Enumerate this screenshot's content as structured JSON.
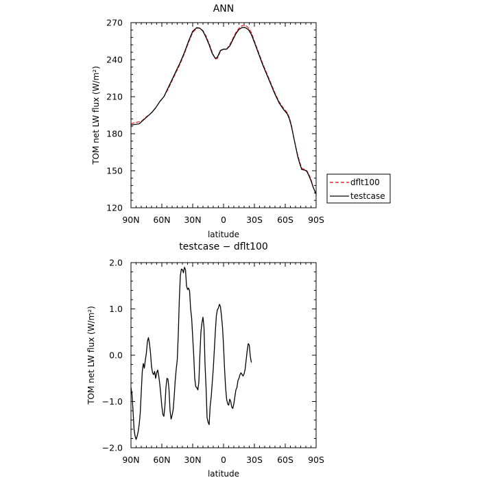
{
  "chart_data": [
    {
      "type": "line",
      "title": "ANN",
      "xlabel": "latitude",
      "ylabel": "TOM net LW flux (W/m²)",
      "xlim": [
        -90,
        90
      ],
      "ylim": [
        120,
        270
      ],
      "xticks": [
        -90,
        -60,
        -30,
        0,
        30,
        60,
        90
      ],
      "xtick_labels": [
        "90N",
        "60N",
        "30N",
        "0",
        "30S",
        "60S",
        "90S"
      ],
      "yticks": [
        120,
        150,
        180,
        210,
        240,
        270
      ],
      "ytick_labels": [
        "120",
        "150",
        "180",
        "210",
        "240",
        "270"
      ],
      "legend": "outside-right",
      "series": [
        {
          "name": "dflt100",
          "color": "#e8262b",
          "dash": "dashed",
          "points": [
            [
              -90,
              188
            ],
            [
              -86,
              189
            ],
            [
              -80,
              190
            ],
            [
              -76,
              193
            ],
            [
              -70,
              197
            ],
            [
              -66,
              201
            ],
            [
              -62,
              206
            ],
            [
              -58,
              210
            ],
            [
              -54,
              216
            ],
            [
              -50,
              223
            ],
            [
              -46,
              230
            ],
            [
              -42,
              237
            ],
            [
              -38,
              245
            ],
            [
              -34,
              254
            ],
            [
              -30,
              262
            ],
            [
              -26,
              265.5
            ],
            [
              -23,
              265.5
            ],
            [
              -20,
              263.5
            ],
            [
              -17,
              259
            ],
            [
              -14,
              253
            ],
            [
              -11,
              246
            ],
            [
              -8,
              240.5
            ],
            [
              -6,
              241
            ],
            [
              -3,
              247
            ],
            [
              0,
              248.5
            ],
            [
              3,
              248.5
            ],
            [
              6,
              252
            ],
            [
              9,
              257
            ],
            [
              12,
              262
            ],
            [
              15,
              265.5
            ],
            [
              18,
              267.5
            ],
            [
              21,
              268
            ],
            [
              24,
              266
            ],
            [
              27,
              262
            ],
            [
              30,
              255
            ],
            [
              34,
              246
            ],
            [
              38,
              237
            ],
            [
              42,
              229
            ],
            [
              46,
              221
            ],
            [
              50,
              213
            ],
            [
              54,
              206
            ],
            [
              58,
              201
            ],
            [
              62,
              197
            ],
            [
              64,
              193
            ],
            [
              66,
              187
            ],
            [
              68,
              178
            ],
            [
              70,
              170
            ],
            [
              72,
              163
            ],
            [
              74,
              157
            ],
            [
              76,
              152
            ],
            [
              79,
              151
            ],
            [
              81,
              150
            ],
            [
              83,
              147
            ],
            [
              85,
              143
            ],
            [
              87,
              137
            ],
            [
              90,
              131
            ]
          ]
        },
        {
          "name": "testcase",
          "color": "#000000",
          "dash": "solid",
          "points": [
            [
              -90,
              187
            ],
            [
              -86,
              187.5
            ],
            [
              -82,
              188
            ],
            [
              -78,
              191
            ],
            [
              -74,
              194
            ],
            [
              -70,
              197
            ],
            [
              -66,
              201
            ],
            [
              -62,
              206
            ],
            [
              -58,
              210
            ],
            [
              -54,
              217
            ],
            [
              -50,
              224
            ],
            [
              -46,
              231
            ],
            [
              -42,
              238
            ],
            [
              -38,
              246
            ],
            [
              -34,
              255
            ],
            [
              -30,
              263
            ],
            [
              -26,
              266
            ],
            [
              -23,
              265.5
            ],
            [
              -20,
              263
            ],
            [
              -17,
              258
            ],
            [
              -14,
              252
            ],
            [
              -11,
              245
            ],
            [
              -8,
              241
            ],
            [
              -6,
              242
            ],
            [
              -3,
              247.5
            ],
            [
              0,
              248.5
            ],
            [
              3,
              248.5
            ],
            [
              6,
              251
            ],
            [
              9,
              256
            ],
            [
              12,
              261
            ],
            [
              15,
              264.5
            ],
            [
              18,
              266
            ],
            [
              21,
              266
            ],
            [
              24,
              264.5
            ],
            [
              27,
              260.5
            ],
            [
              30,
              254
            ],
            [
              34,
              245
            ],
            [
              38,
              236
            ],
            [
              42,
              228
            ],
            [
              46,
              220
            ],
            [
              50,
              212
            ],
            [
              54,
              205
            ],
            [
              58,
              200
            ],
            [
              62,
              196
            ],
            [
              64,
              192
            ],
            [
              66,
              186
            ],
            [
              68,
              178
            ],
            [
              70,
              170
            ],
            [
              72,
              162
            ],
            [
              74,
              156
            ],
            [
              76,
              151
            ],
            [
              79,
              150.5
            ],
            [
              81,
              149.5
            ],
            [
              83,
              146
            ],
            [
              85,
              142
            ],
            [
              87,
              137
            ],
            [
              90,
              131
            ]
          ]
        }
      ]
    },
    {
      "type": "line",
      "title": "testcase − dflt100",
      "xlabel": "latitude",
      "ylabel": "TOM net LW flux (W/m²)",
      "xlim": [
        -90,
        90
      ],
      "ylim": [
        -2.0,
        2.0
      ],
      "xticks": [
        -90,
        -60,
        -30,
        0,
        30,
        60,
        90
      ],
      "xtick_labels": [
        "90N",
        "60N",
        "30N",
        "0",
        "30S",
        "60S",
        "90S"
      ],
      "yticks": [
        -2.0,
        -1.0,
        0.0,
        1.0,
        2.0
      ],
      "ytick_labels": [
        "−2.0",
        "−1.0",
        "0.0",
        "1.0",
        "2.0"
      ],
      "series": [
        {
          "name": "",
          "color": "#000000",
          "dash": "solid",
          "points": [
            [
              -90,
              -0.7
            ],
            [
              -89,
              -0.85
            ],
            [
              -88,
              -1.2
            ],
            [
              -87,
              -1.6
            ],
            [
              -86,
              -1.75
            ],
            [
              -85,
              -1.82
            ],
            [
              -84,
              -1.75
            ],
            [
              -83,
              -1.65
            ],
            [
              -82,
              -1.5
            ],
            [
              -81,
              -1.25
            ],
            [
              -80,
              -0.8
            ],
            [
              -79,
              -0.35
            ],
            [
              -78,
              -0.18
            ],
            [
              -77,
              -0.28
            ],
            [
              -76,
              -0.1
            ],
            [
              -75,
              0.05
            ],
            [
              -74,
              0.3
            ],
            [
              -73,
              0.38
            ],
            [
              -72,
              0.25
            ],
            [
              -71,
              0.05
            ],
            [
              -70,
              -0.25
            ],
            [
              -69,
              -0.38
            ],
            [
              -68,
              -0.42
            ],
            [
              -67,
              -0.35
            ],
            [
              -66,
              -0.5
            ],
            [
              -65,
              -0.38
            ],
            [
              -64,
              -0.32
            ],
            [
              -63,
              -0.45
            ],
            [
              -62,
              -0.62
            ],
            [
              -61,
              -0.85
            ],
            [
              -60,
              -1.1
            ],
            [
              -59,
              -1.28
            ],
            [
              -58,
              -1.32
            ],
            [
              -57,
              -1.1
            ],
            [
              -56,
              -0.7
            ],
            [
              -55,
              -0.5
            ],
            [
              -54,
              -0.52
            ],
            [
              -53,
              -0.75
            ],
            [
              -52,
              -1.2
            ],
            [
              -51,
              -1.38
            ],
            [
              -50,
              -1.3
            ],
            [
              -49,
              -1.18
            ],
            [
              -48,
              -0.9
            ],
            [
              -47,
              -0.55
            ],
            [
              -46,
              -0.3
            ],
            [
              -45,
              -0.1
            ],
            [
              -44,
              0.45
            ],
            [
              -43,
              1.2
            ],
            [
              -42,
              1.72
            ],
            [
              -41,
              1.86
            ],
            [
              -40,
              1.85
            ],
            [
              -39,
              1.78
            ],
            [
              -38,
              1.9
            ],
            [
              -37,
              1.85
            ],
            [
              -36,
              1.5
            ],
            [
              -35,
              1.42
            ],
            [
              -34,
              1.45
            ],
            [
              -33,
              1.38
            ],
            [
              -32,
              1.0
            ],
            [
              -31,
              0.8
            ],
            [
              -30,
              0.4
            ],
            [
              -29,
              0.0
            ],
            [
              -28,
              -0.5
            ],
            [
              -27,
              -0.68
            ],
            [
              -26,
              -0.7
            ],
            [
              -25,
              -0.75
            ],
            [
              -24,
              -0.58
            ],
            [
              -23,
              0.0
            ],
            [
              -22,
              0.5
            ],
            [
              -21,
              0.7
            ],
            [
              -20,
              0.82
            ],
            [
              -19,
              0.6
            ],
            [
              -18,
              -0.2
            ],
            [
              -17,
              -0.7
            ],
            [
              -16,
              -1.35
            ],
            [
              -15,
              -1.45
            ],
            [
              -14,
              -1.5
            ],
            [
              -13,
              -1.1
            ],
            [
              -12,
              -0.9
            ],
            [
              -11,
              -0.6
            ],
            [
              -10,
              -0.3
            ],
            [
              -9,
              0.1
            ],
            [
              -8,
              0.5
            ],
            [
              -7,
              0.85
            ],
            [
              -6,
              0.98
            ],
            [
              -5,
              1.02
            ],
            [
              -4,
              1.1
            ],
            [
              -3,
              1.05
            ],
            [
              -2,
              0.85
            ],
            [
              -1,
              0.6
            ],
            [
              0,
              0.2
            ],
            [
              1,
              -0.3
            ],
            [
              2,
              -0.7
            ],
            [
              3,
              -0.95
            ],
            [
              4,
              -1.05
            ],
            [
              5,
              -1.08
            ],
            [
              6,
              -0.95
            ],
            [
              7,
              -1.0
            ],
            [
              8,
              -1.12
            ],
            [
              9,
              -1.15
            ],
            [
              10,
              -1.05
            ],
            [
              11,
              -0.9
            ],
            [
              12,
              -0.75
            ],
            [
              13,
              -0.7
            ],
            [
              14,
              -0.55
            ],
            [
              15,
              -0.5
            ],
            [
              16,
              -0.42
            ],
            [
              17,
              -0.38
            ],
            [
              18,
              -0.42
            ],
            [
              19,
              -0.45
            ],
            [
              20,
              -0.4
            ],
            [
              21,
              -0.3
            ],
            [
              22,
              -0.1
            ],
            [
              23,
              0.1
            ],
            [
              24,
              0.25
            ],
            [
              25,
              0.22
            ],
            [
              26,
              -0.02
            ],
            [
              27,
              -0.15
            ]
          ]
        }
      ]
    }
  ]
}
